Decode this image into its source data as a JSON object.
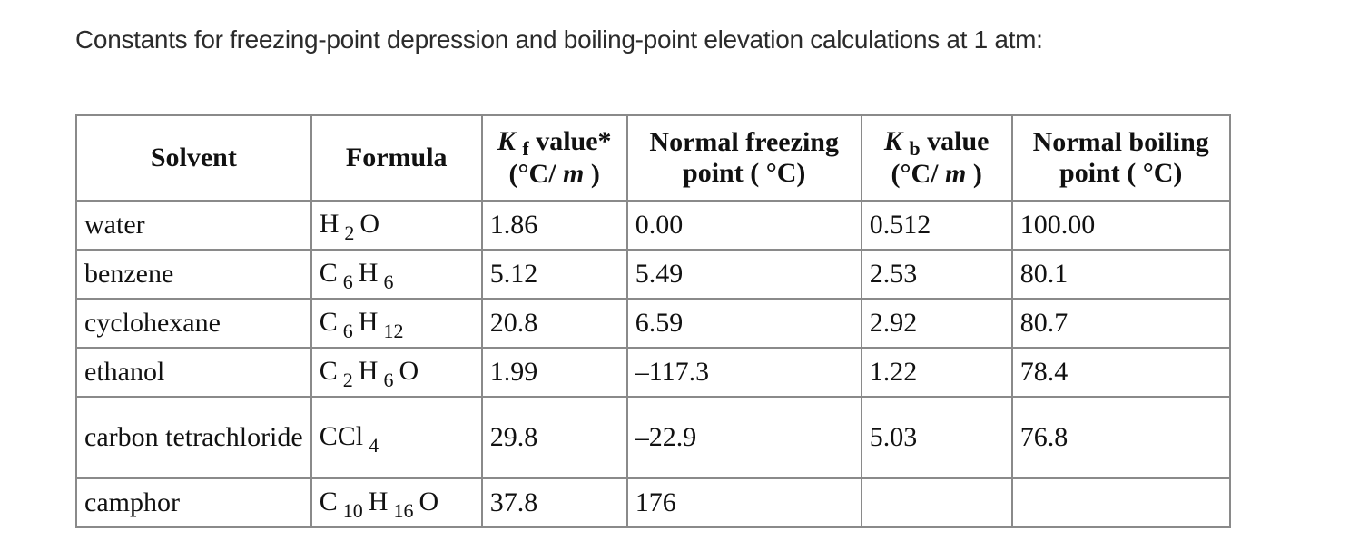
{
  "intro": "Constants for freezing-point depression and boiling-point elevation calculations at 1 atm:",
  "headers": {
    "solvent": "Solvent",
    "formula": "Formula",
    "kf_symbol": "K",
    "kf_sub": "f",
    "kf_rest": " value*",
    "kf_unit_open": "(°C/ ",
    "kf_unit_m": "m",
    "kf_unit_close": " )",
    "nfp_line1": "Normal freezing",
    "nfp_line2": "point ( °C)",
    "kb_symbol": "K",
    "kb_sub": "b",
    "kb_rest": " value",
    "kb_unit_open": "(°C/ ",
    "kb_unit_m": "m",
    "kb_unit_close": " )",
    "nbp_line1": "Normal boiling",
    "nbp_line2": "point ( °C)"
  },
  "rows": [
    {
      "solvent": "water",
      "formula": [
        {
          "t": "H"
        },
        {
          "s": "2"
        },
        {
          "t": "O"
        }
      ],
      "kf": "1.86",
      "nfp": "0.00",
      "kb": "0.512",
      "nbp": "100.00"
    },
    {
      "solvent": "benzene",
      "formula": [
        {
          "t": "C"
        },
        {
          "s": "6"
        },
        {
          "t": "H"
        },
        {
          "s": "6"
        }
      ],
      "kf": "5.12",
      "nfp": "5.49",
      "kb": "2.53",
      "nbp": "80.1"
    },
    {
      "solvent": "cyclohexane",
      "formula": [
        {
          "t": "C"
        },
        {
          "s": "6"
        },
        {
          "t": "H"
        },
        {
          "s": "12"
        }
      ],
      "kf": "20.8",
      "nfp": "6.59",
      "kb": "2.92",
      "nbp": "80.7"
    },
    {
      "solvent": "ethanol",
      "formula": [
        {
          "t": "C"
        },
        {
          "s": "2"
        },
        {
          "t": "H"
        },
        {
          "s": "6"
        },
        {
          "t": "O"
        }
      ],
      "kf": "1.99",
      "nfp": "–117.3",
      "kb": "1.22",
      "nbp": "78.4"
    },
    {
      "solvent": "carbon tetrachloride",
      "formula": [
        {
          "t": "CCl"
        },
        {
          "s": "4"
        }
      ],
      "kf": "29.8",
      "nfp": "–22.9",
      "kb": "5.03",
      "nbp": "76.8"
    },
    {
      "solvent": "camphor",
      "formula": [
        {
          "t": "C"
        },
        {
          "s": "10"
        },
        {
          "t": "H"
        },
        {
          "s": "16"
        },
        {
          "t": "O"
        }
      ],
      "kf": "37.8",
      "nfp": "176",
      "kb": "",
      "nbp": ""
    }
  ]
}
